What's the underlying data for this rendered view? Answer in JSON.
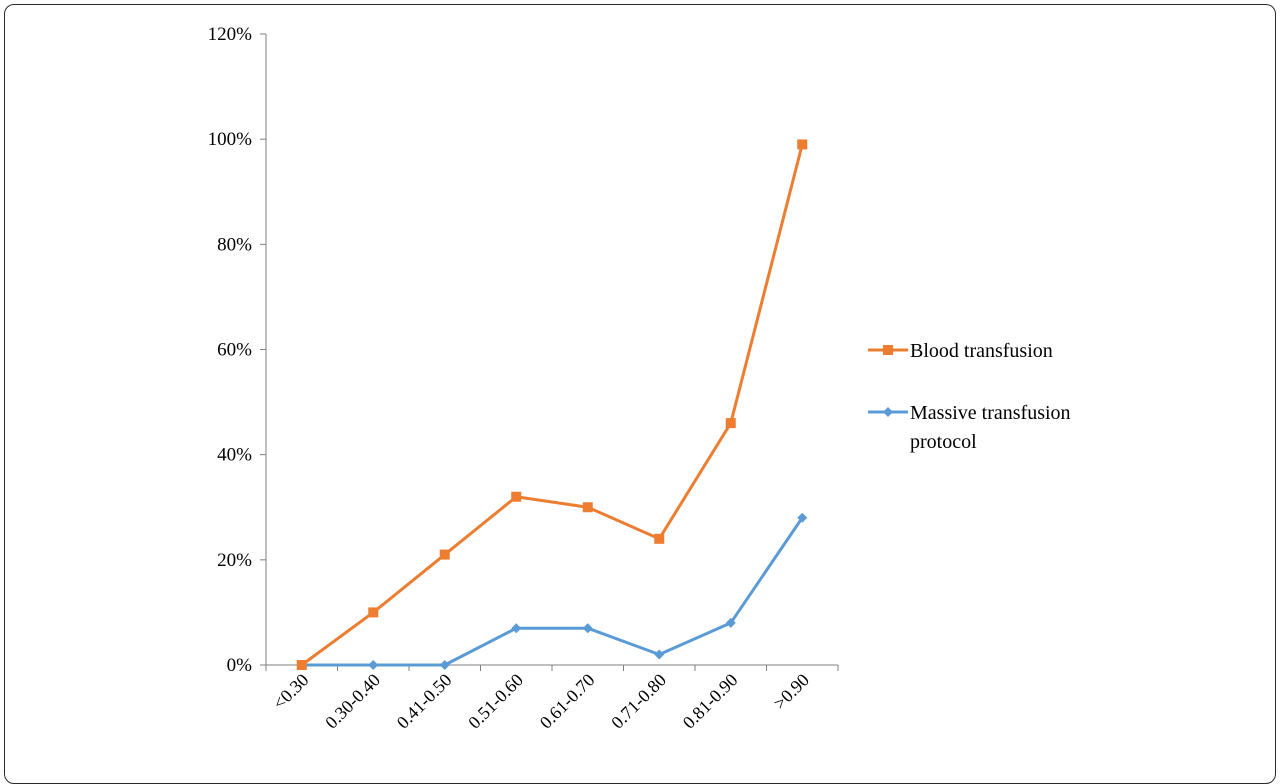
{
  "chart_data": {
    "type": "line",
    "categories": [
      "<0.30",
      "0.30-0.40",
      "0.41-0.50",
      "0.51-0.60",
      "0.61-0.70",
      "0.71-0.80",
      "0.81-0.90",
      ">0.90"
    ],
    "series": [
      {
        "name": "Blood transfusion",
        "color": "#ed7d31",
        "marker": "square",
        "values": [
          0,
          10,
          21,
          32,
          30,
          24,
          46,
          99
        ]
      },
      {
        "name": "Massive transfusion protocol",
        "legend_lines": [
          "Massive transfusion",
          "protocol"
        ],
        "color": "#5b9bd5",
        "marker": "diamond",
        "values": [
          0,
          0,
          0,
          7,
          7,
          2,
          8,
          28
        ]
      }
    ],
    "yticks": [
      "0%",
      "20%",
      "40%",
      "60%",
      "80%",
      "100%",
      "120%"
    ],
    "ylim": [
      0,
      120
    ],
    "xlabel": "",
    "ylabel": "",
    "title": "",
    "grid": false,
    "legend_position": "right"
  }
}
